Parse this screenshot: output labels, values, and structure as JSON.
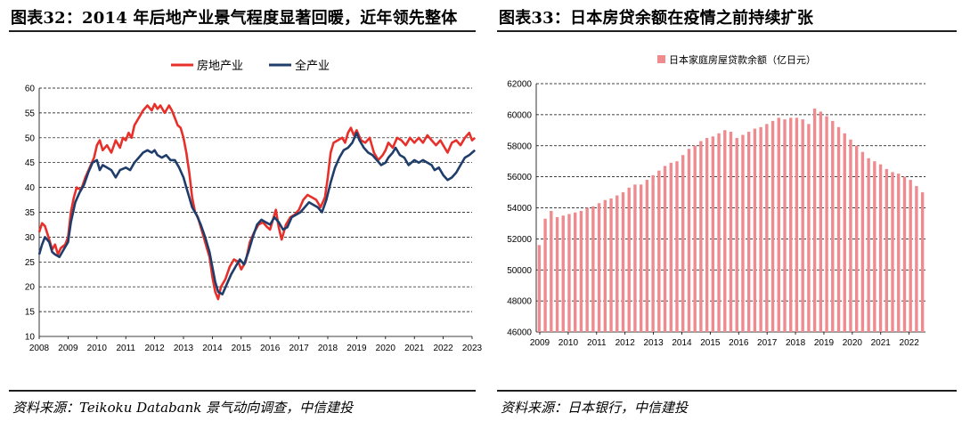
{
  "left": {
    "title": "图表32：2014 年后地产业景气程度显著回暖，近年领先整体",
    "source": "资料来源：Teikoku Databank 景气动向调查，中信建投",
    "chart_data": {
      "type": "line",
      "ylim": [
        10,
        60
      ],
      "yticks": [
        10,
        15,
        20,
        25,
        30,
        35,
        40,
        45,
        50,
        55,
        60
      ],
      "xlim": [
        2008,
        2023
      ],
      "xticks": [
        "2008",
        "2009",
        "2010",
        "2011",
        "2012",
        "2013",
        "2014",
        "2015",
        "2016",
        "2017",
        "2018",
        "2019",
        "2020",
        "2021",
        "2022",
        "2023"
      ],
      "grid": "horizontal dashed",
      "legend": "top-center",
      "series": [
        {
          "name": "房地产业",
          "color": "#e8302a",
          "points": [
            [
              2008.0,
              31.0
            ],
            [
              2008.1,
              32.8
            ],
            [
              2008.2,
              32.2
            ],
            [
              2008.35,
              29.5
            ],
            [
              2008.45,
              27.5
            ],
            [
              2008.55,
              28.5
            ],
            [
              2008.65,
              26.5
            ],
            [
              2008.75,
              27.8
            ],
            [
              2008.9,
              28.5
            ],
            [
              2009.0,
              30.0
            ],
            [
              2009.1,
              35.0
            ],
            [
              2009.2,
              38.0
            ],
            [
              2009.3,
              40.0
            ],
            [
              2009.45,
              39.5
            ],
            [
              2009.6,
              42.0
            ],
            [
              2009.75,
              44.0
            ],
            [
              2009.9,
              46.0
            ],
            [
              2010.0,
              48.5
            ],
            [
              2010.1,
              49.5
            ],
            [
              2010.2,
              47.5
            ],
            [
              2010.35,
              48.5
            ],
            [
              2010.5,
              47.0
            ],
            [
              2010.65,
              49.5
            ],
            [
              2010.8,
              48.0
            ],
            [
              2010.9,
              50.0
            ],
            [
              2011.0,
              49.5
            ],
            [
              2011.1,
              51.0
            ],
            [
              2011.2,
              50.0
            ],
            [
              2011.3,
              52.5
            ],
            [
              2011.45,
              54.0
            ],
            [
              2011.6,
              55.5
            ],
            [
              2011.75,
              56.5
            ],
            [
              2011.9,
              55.5
            ],
            [
              2012.0,
              56.8
            ],
            [
              2012.1,
              55.8
            ],
            [
              2012.2,
              56.5
            ],
            [
              2012.35,
              55.0
            ],
            [
              2012.5,
              56.5
            ],
            [
              2012.6,
              55.5
            ],
            [
              2012.7,
              54.0
            ],
            [
              2012.8,
              52.5
            ],
            [
              2012.9,
              52.0
            ],
            [
              2013.0,
              50.0
            ],
            [
              2013.1,
              47.0
            ],
            [
              2013.2,
              43.0
            ],
            [
              2013.3,
              38.0
            ],
            [
              2013.4,
              35.0
            ],
            [
              2013.5,
              34.0
            ],
            [
              2013.6,
              32.0
            ],
            [
              2013.7,
              30.0
            ],
            [
              2013.8,
              28.0
            ],
            [
              2013.9,
              26.0
            ],
            [
              2014.0,
              22.0
            ],
            [
              2014.1,
              19.0
            ],
            [
              2014.2,
              17.5
            ],
            [
              2014.3,
              20.0
            ],
            [
              2014.45,
              21.5
            ],
            [
              2014.6,
              24.0
            ],
            [
              2014.75,
              25.5
            ],
            [
              2014.9,
              25.0
            ],
            [
              2015.0,
              23.5
            ],
            [
              2015.15,
              25.0
            ],
            [
              2015.3,
              29.0
            ],
            [
              2015.45,
              31.0
            ],
            [
              2015.6,
              32.5
            ],
            [
              2015.75,
              33.0
            ],
            [
              2015.9,
              32.0
            ],
            [
              2016.0,
              31.5
            ],
            [
              2016.1,
              33.5
            ],
            [
              2016.2,
              35.5
            ],
            [
              2016.3,
              32.0
            ],
            [
              2016.4,
              29.5
            ],
            [
              2016.55,
              32.5
            ],
            [
              2016.7,
              34.0
            ],
            [
              2016.85,
              34.5
            ],
            [
              2017.0,
              35.5
            ],
            [
              2017.15,
              37.5
            ],
            [
              2017.3,
              38.5
            ],
            [
              2017.45,
              38.0
            ],
            [
              2017.6,
              37.5
            ],
            [
              2017.75,
              36.0
            ],
            [
              2017.9,
              38.0
            ],
            [
              2018.0,
              42.0
            ],
            [
              2018.1,
              47.0
            ],
            [
              2018.2,
              49.0
            ],
            [
              2018.35,
              49.5
            ],
            [
              2018.5,
              50.0
            ],
            [
              2018.6,
              49.0
            ],
            [
              2018.7,
              51.0
            ],
            [
              2018.8,
              52.0
            ],
            [
              2018.9,
              50.5
            ],
            [
              2019.0,
              51.5
            ],
            [
              2019.15,
              49.5
            ],
            [
              2019.3,
              49.0
            ],
            [
              2019.45,
              50.0
            ],
            [
              2019.6,
              47.0
            ],
            [
              2019.75,
              45.5
            ],
            [
              2019.9,
              46.5
            ],
            [
              2020.0,
              47.5
            ],
            [
              2020.1,
              49.0
            ],
            [
              2020.25,
              48.0
            ],
            [
              2020.4,
              50.0
            ],
            [
              2020.55,
              49.5
            ],
            [
              2020.7,
              48.5
            ],
            [
              2020.85,
              50.0
            ],
            [
              2021.0,
              49.0
            ],
            [
              2021.15,
              50.0
            ],
            [
              2021.3,
              49.0
            ],
            [
              2021.45,
              50.5
            ],
            [
              2021.6,
              49.5
            ],
            [
              2021.75,
              48.5
            ],
            [
              2021.9,
              49.5
            ],
            [
              2022.0,
              48.5
            ],
            [
              2022.15,
              47.0
            ],
            [
              2022.3,
              49.0
            ],
            [
              2022.45,
              49.5
            ],
            [
              2022.6,
              48.5
            ],
            [
              2022.75,
              50.0
            ],
            [
              2022.9,
              51.0
            ],
            [
              2023.0,
              49.5
            ],
            [
              2023.1,
              50.0
            ]
          ]
        },
        {
          "name": "全产业",
          "color": "#1f3d6b",
          "points": [
            [
              2008.0,
              26.5
            ],
            [
              2008.1,
              28.5
            ],
            [
              2008.2,
              30.0
            ],
            [
              2008.35,
              29.0
            ],
            [
              2008.45,
              27.0
            ],
            [
              2008.55,
              26.5
            ],
            [
              2008.7,
              26.0
            ],
            [
              2008.85,
              27.5
            ],
            [
              2009.0,
              29.0
            ],
            [
              2009.1,
              33.0
            ],
            [
              2009.25,
              37.0
            ],
            [
              2009.4,
              39.0
            ],
            [
              2009.55,
              40.5
            ],
            [
              2009.7,
              43.0
            ],
            [
              2009.85,
              45.0
            ],
            [
              2010.0,
              45.5
            ],
            [
              2010.1,
              43.5
            ],
            [
              2010.2,
              44.5
            ],
            [
              2010.35,
              44.0
            ],
            [
              2010.5,
              43.5
            ],
            [
              2010.65,
              42.0
            ],
            [
              2010.8,
              43.5
            ],
            [
              2011.0,
              44.0
            ],
            [
              2011.15,
              43.5
            ],
            [
              2011.3,
              45.0
            ],
            [
              2011.45,
              46.0
            ],
            [
              2011.6,
              47.0
            ],
            [
              2011.75,
              47.5
            ],
            [
              2011.9,
              47.0
            ],
            [
              2012.0,
              47.5
            ],
            [
              2012.1,
              46.5
            ],
            [
              2012.25,
              46.0
            ],
            [
              2012.4,
              46.5
            ],
            [
              2012.55,
              45.5
            ],
            [
              2012.7,
              45.5
            ],
            [
              2012.85,
              44.0
            ],
            [
              2013.0,
              42.0
            ],
            [
              2013.1,
              40.0
            ],
            [
              2013.2,
              38.0
            ],
            [
              2013.3,
              36.0
            ],
            [
              2013.45,
              34.5
            ],
            [
              2013.6,
              32.5
            ],
            [
              2013.75,
              30.0
            ],
            [
              2013.9,
              27.0
            ],
            [
              2014.0,
              24.0
            ],
            [
              2014.1,
              21.0
            ],
            [
              2014.2,
              19.0
            ],
            [
              2014.35,
              18.5
            ],
            [
              2014.5,
              20.5
            ],
            [
              2014.65,
              22.5
            ],
            [
              2014.8,
              24.0
            ],
            [
              2014.95,
              25.5
            ],
            [
              2015.1,
              24.5
            ],
            [
              2015.25,
              27.0
            ],
            [
              2015.4,
              30.0
            ],
            [
              2015.55,
              32.5
            ],
            [
              2015.7,
              33.5
            ],
            [
              2015.85,
              33.0
            ],
            [
              2016.0,
              32.5
            ],
            [
              2016.15,
              34.0
            ],
            [
              2016.3,
              33.0
            ],
            [
              2016.45,
              31.5
            ],
            [
              2016.6,
              32.0
            ],
            [
              2016.75,
              34.0
            ],
            [
              2016.9,
              34.5
            ],
            [
              2017.05,
              35.0
            ],
            [
              2017.2,
              36.0
            ],
            [
              2017.35,
              37.0
            ],
            [
              2017.5,
              36.5
            ],
            [
              2017.65,
              36.0
            ],
            [
              2017.8,
              35.0
            ],
            [
              2017.95,
              37.5
            ],
            [
              2018.1,
              41.0
            ],
            [
              2018.25,
              44.0
            ],
            [
              2018.4,
              46.0
            ],
            [
              2018.55,
              47.5
            ],
            [
              2018.7,
              48.0
            ],
            [
              2018.85,
              49.0
            ],
            [
              2019.0,
              51.0
            ],
            [
              2019.1,
              49.5
            ],
            [
              2019.25,
              48.0
            ],
            [
              2019.4,
              47.0
            ],
            [
              2019.55,
              46.5
            ],
            [
              2019.7,
              45.5
            ],
            [
              2019.85,
              44.5
            ],
            [
              2020.0,
              45.0
            ],
            [
              2020.1,
              46.0
            ],
            [
              2020.25,
              47.0
            ],
            [
              2020.35,
              48.0
            ],
            [
              2020.5,
              46.5
            ],
            [
              2020.65,
              46.0
            ],
            [
              2020.8,
              44.5
            ],
            [
              2021.0,
              45.5
            ],
            [
              2021.15,
              45.0
            ],
            [
              2021.3,
              45.5
            ],
            [
              2021.45,
              45.0
            ],
            [
              2021.6,
              44.5
            ],
            [
              2021.7,
              43.5
            ],
            [
              2021.85,
              44.0
            ],
            [
              2022.0,
              42.5
            ],
            [
              2022.15,
              41.5
            ],
            [
              2022.3,
              42.0
            ],
            [
              2022.45,
              43.0
            ],
            [
              2022.6,
              44.5
            ],
            [
              2022.75,
              46.0
            ],
            [
              2022.9,
              46.5
            ],
            [
              2023.0,
              47.0
            ],
            [
              2023.1,
              47.5
            ]
          ]
        }
      ]
    }
  },
  "right": {
    "title": "图表33：日本房贷余额在疫情之前持续扩张",
    "source": "资料来源：日本银行，中信建投",
    "chart_data": {
      "type": "bar",
      "ylim": [
        46000,
        62000
      ],
      "yticks": [
        46000,
        48000,
        50000,
        52000,
        54000,
        56000,
        58000,
        60000,
        62000
      ],
      "xticks": [
        "2009",
        "2010",
        "2011",
        "2012",
        "2013",
        "2014",
        "2015",
        "2016",
        "2017",
        "2018",
        "2019",
        "2020",
        "2021",
        "2022"
      ],
      "grid": "horizontal dashed",
      "legend": "top-center",
      "series": [
        {
          "name": "日本家庭房屋贷款余额（亿日元）",
          "color": "#ef8a8e",
          "values": [
            51600,
            53300,
            53800,
            53400,
            53500,
            53600,
            53700,
            53800,
            54000,
            54100,
            54300,
            54500,
            54600,
            54800,
            55000,
            55300,
            55500,
            55500,
            55800,
            56100,
            56400,
            56700,
            56900,
            57000,
            57400,
            57800,
            58000,
            58300,
            58500,
            58600,
            58800,
            59000,
            58900,
            58500,
            58700,
            58900,
            59100,
            59200,
            59400,
            59600,
            59800,
            59700,
            59800,
            59800,
            59700,
            59400,
            60400,
            60200,
            59900,
            59600,
            59200,
            58800,
            58400,
            58000,
            57600,
            57200,
            57000,
            56800,
            56500,
            56300,
            56200,
            56000,
            55800,
            55400,
            55000
          ]
        }
      ]
    }
  }
}
